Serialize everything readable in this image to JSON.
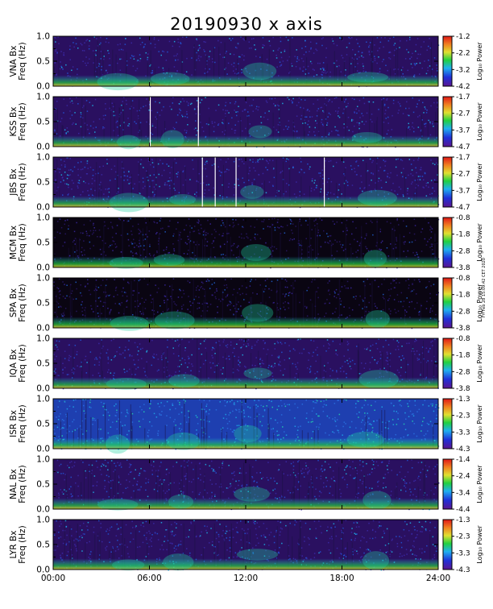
{
  "page": {
    "title": "20190930 x axis",
    "timestamp": "Fri Feb 28 15:09:42 CET 2020"
  },
  "chart_data": {
    "type": "heatmap",
    "x_ticks": [
      "00:00",
      "06:00",
      "12:00",
      "18:00",
      "24:00"
    ],
    "xlim": [
      0,
      24
    ],
    "y_ticks": [
      "0.0",
      "0.5",
      "1.0"
    ],
    "ylim": [
      0,
      1.0
    ],
    "colorbar_label": "Log₁₀ Power",
    "panels": [
      {
        "station": "VNA",
        "ylabel_top": "VNA Bx",
        "ylabel_bottom": "Freq (Hz)",
        "cbar_ticks": [
          "-1.2",
          "-2.2",
          "-3.2",
          "-4.2"
        ],
        "bg": "dark",
        "white_lines": []
      },
      {
        "station": "KSS",
        "ylabel_top": "KSS Bx",
        "ylabel_bottom": "Freq (Hz)",
        "cbar_ticks": [
          "-1.7",
          "-2.7",
          "-3.7",
          "-4.7"
        ],
        "bg": "dark",
        "white_lines": [
          6.05,
          9.05
        ]
      },
      {
        "station": "JBS",
        "ylabel_top": "JBS Bx",
        "ylabel_bottom": "Freq (Hz)",
        "cbar_ticks": [
          "-1.7",
          "-2.7",
          "-3.7",
          "-4.7"
        ],
        "bg": "dark",
        "white_lines": [
          9.3,
          10.1,
          11.4,
          16.9
        ]
      },
      {
        "station": "MCM",
        "ylabel_top": "MCM Bx",
        "ylabel_bottom": "Freq (Hz)",
        "cbar_ticks": [
          "-0.8",
          "-1.8",
          "-2.8",
          "-3.8"
        ],
        "bg": "black",
        "white_lines": []
      },
      {
        "station": "SPA",
        "ylabel_top": "SPA Bx",
        "ylabel_bottom": "Freq (Hz)",
        "cbar_ticks": [
          "-0.8",
          "-1.8",
          "-2.8",
          "-3.8"
        ],
        "bg": "black",
        "white_lines": []
      },
      {
        "station": "IQA",
        "ylabel_top": "IQA Bx",
        "ylabel_bottom": "Freq (Hz)",
        "cbar_ticks": [
          "-0.8",
          "-1.8",
          "-2.8",
          "-3.8"
        ],
        "bg": "dark",
        "white_lines": []
      },
      {
        "station": "ISR",
        "ylabel_top": "ISR Bx",
        "ylabel_bottom": "Freq (Hz)",
        "cbar_ticks": [
          "-1.3",
          "-2.3",
          "-3.3",
          "-4.3"
        ],
        "bg": "blue",
        "white_lines": []
      },
      {
        "station": "NAL",
        "ylabel_top": "NAL Bx",
        "ylabel_bottom": "Freq (Hz)",
        "cbar_ticks": [
          "-1.4",
          "-2.4",
          "-3.4",
          "-4.4"
        ],
        "bg": "dark",
        "white_lines": []
      },
      {
        "station": "LYR",
        "ylabel_top": "LYR Bx",
        "ylabel_bottom": "Freq (Hz)",
        "cbar_ticks": [
          "-1.3",
          "-2.3",
          "-3.3",
          "-4.3"
        ],
        "bg": "dark",
        "white_lines": []
      }
    ],
    "colors": {
      "dark": "#2a1060",
      "black": "#0a0512",
      "blue": "#1e3fb0",
      "green": "#12c838",
      "cyan": "#1ec8e6",
      "yellow": "#e8e83a",
      "red": "#e83020"
    }
  }
}
